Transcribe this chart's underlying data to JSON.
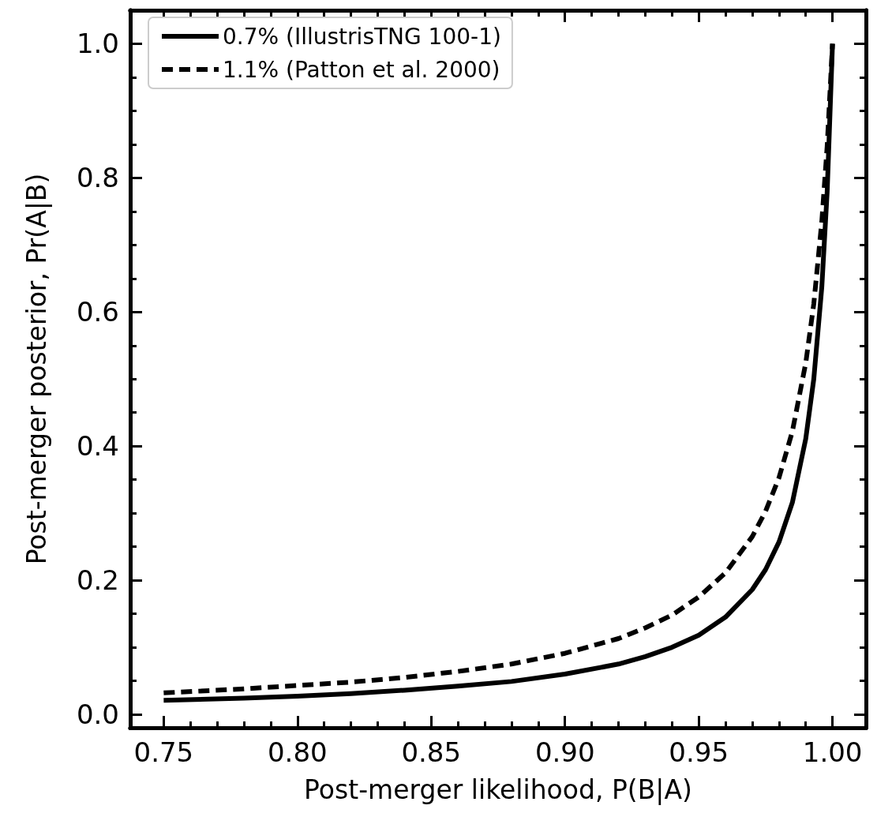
{
  "chart_data": {
    "type": "line",
    "xlabel": "Post-merger likelihood, P(B|A)",
    "ylabel": "Post-merger posterior, Pr(A|B)",
    "x": [
      0.75,
      0.78,
      0.8,
      0.82,
      0.84,
      0.86,
      0.88,
      0.9,
      0.92,
      0.93,
      0.94,
      0.95,
      0.96,
      0.97,
      0.975,
      0.98,
      0.985,
      0.99,
      0.993,
      0.996,
      0.998,
      1.0
    ],
    "series": [
      {
        "name": "0.7% (IllustrisTNG 100-1)",
        "color": "#000000",
        "line_style": "solid",
        "values": [
          0.021,
          0.024,
          0.027,
          0.031,
          0.036,
          0.042,
          0.049,
          0.06,
          0.075,
          0.086,
          0.1,
          0.118,
          0.145,
          0.186,
          0.216,
          0.257,
          0.316,
          0.411,
          0.5,
          0.637,
          0.779,
          1.0
        ]
      },
      {
        "name": "1.1% (Patton et al. 2000)",
        "color": "#000000",
        "line_style": "dashed",
        "values": [
          0.032,
          0.038,
          0.043,
          0.048,
          0.055,
          0.064,
          0.075,
          0.091,
          0.113,
          0.129,
          0.148,
          0.175,
          0.211,
          0.265,
          0.303,
          0.353,
          0.422,
          0.524,
          0.612,
          0.735,
          0.847,
          1.0
        ]
      }
    ],
    "xlim": [
      0.7375,
      1.0125
    ],
    "xticks": [
      0.75,
      {
        "value": 0.8,
        "label": "0.80"
      },
      0.85,
      {
        "value": 0.9,
        "label": "0.90"
      },
      0.95,
      {
        "value": 1,
        "label": "1.00"
      }
    ],
    "ylim": [
      -0.02,
      1.05
    ],
    "yticks": [
      {
        "value": 0,
        "label": "0.0"
      },
      0.2,
      0.4,
      0.6,
      0.8,
      {
        "value": 1,
        "label": "1.0"
      }
    ],
    "grid": false,
    "legend": "top left",
    "marker": "none"
  }
}
